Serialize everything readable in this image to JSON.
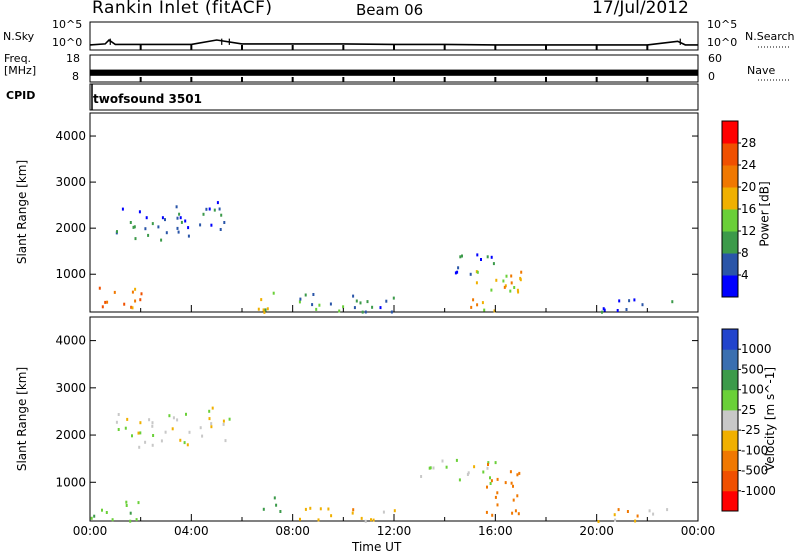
{
  "header": {
    "station": "Rankin Inlet (fitACF)",
    "beam": "Beam 06",
    "date": "17/Jul/2012"
  },
  "sky_panel": {
    "left_label": "N.Sky",
    "left_tick_top": "10^5",
    "left_tick_bottom": "10^0",
    "right_label": "N.Search",
    "right_tick_top": "10^5",
    "right_tick_bottom": "10^0"
  },
  "freq_panel": {
    "left_label_line1": "Freq.",
    "left_label_line2": "[MHz]",
    "left_tick_top": "18",
    "left_tick_bottom": "8",
    "right_label": "Nave",
    "right_tick_top": "60",
    "right_tick_bottom": "0"
  },
  "cpid_panel": {
    "label": "CPID",
    "value": "twofsound 3501"
  },
  "x_axis": {
    "label": "Time UT",
    "ticks": [
      "00:00",
      "04:00",
      "08:00",
      "12:00",
      "16:00",
      "20:00",
      "00:00"
    ]
  },
  "power_panel": {
    "ylabel": "Slant Range [km]",
    "yticks": [
      "1000",
      "2000",
      "3000",
      "4000"
    ],
    "cbar_label": "Power [dB]",
    "cbar_ticks": [
      "4",
      "8",
      "12",
      "16",
      "20",
      "24",
      "28"
    ],
    "cbar_colors": [
      "#0000ff",
      "#2a55a8",
      "#3c9a4a",
      "#6ad038",
      "#f0b000",
      "#f07800",
      "#f05000",
      "#ff0000"
    ]
  },
  "velocity_panel": {
    "ylabel": "Slant Range [km]",
    "yticks": [
      "1000",
      "2000",
      "3000",
      "4000"
    ],
    "cbar_label": "Velocity [m s^-1]",
    "cbar_ticks": [
      "1000",
      "500",
      "100",
      "25",
      "-25",
      "-100",
      "-500",
      "-1000"
    ],
    "cbar_colors": [
      "#2244cc",
      "#3a6fb0",
      "#3c9a4a",
      "#6ad038",
      "#c8c8c8",
      "#f0b000",
      "#f07800",
      "#f05000",
      "#ff0000"
    ]
  },
  "chart_data": [
    {
      "type": "line",
      "name": "N.Sky",
      "x_unit": "hours UT",
      "x_range": [
        0,
        24
      ],
      "scale": "log",
      "ylim": [
        1,
        100000
      ],
      "x": [
        0,
        0.6,
        0.75,
        1,
        2,
        4,
        5,
        6,
        8,
        10,
        12,
        14,
        16,
        18,
        20,
        22,
        23.2,
        23.5,
        24
      ],
      "values": [
        3,
        5,
        40,
        4,
        4,
        4,
        40,
        5,
        5,
        5,
        4,
        4,
        3,
        3,
        3,
        3,
        20,
        3,
        3
      ]
    },
    {
      "type": "area",
      "name": "Freq. [MHz]",
      "x_range": [
        0,
        24
      ],
      "ylim": [
        8,
        18
      ],
      "note_values_description": "dense band, approximately constant",
      "x": [
        0,
        24
      ],
      "values": [
        11,
        11
      ]
    },
    {
      "type": "heatmap",
      "title": "Power [dB]",
      "xlabel": "Time UT",
      "ylabel": "Slant Range [km]",
      "x_range_hours": [
        0,
        24
      ],
      "y_range_km": [
        180,
        4500
      ],
      "color_range": [
        0,
        30
      ],
      "colorbar_ticks": [
        4,
        8,
        12,
        16,
        20,
        24,
        28
      ],
      "regions": [
        {
          "t0": 0.0,
          "t1": 2.0,
          "r0": 200,
          "r1": 800,
          "value": 22
        },
        {
          "t0": 1.0,
          "t1": 4.0,
          "r0": 1700,
          "r1": 2500,
          "value": 6
        },
        {
          "t0": 4.3,
          "t1": 5.5,
          "r0": 1900,
          "r1": 2700,
          "value": 5
        },
        {
          "t0": 6.5,
          "t1": 7.5,
          "r0": 200,
          "r1": 800,
          "value": 14
        },
        {
          "t0": 7.0,
          "t1": 12.0,
          "r0": 200,
          "r1": 600,
          "value": 8
        },
        {
          "t0": 14.0,
          "t1": 16.0,
          "r0": 1000,
          "r1": 1500,
          "value": 6
        },
        {
          "t0": 15.0,
          "t1": 17.0,
          "r0": 200,
          "r1": 1300,
          "value": 16
        },
        {
          "t0": 20.0,
          "t1": 23.0,
          "r0": 200,
          "r1": 500,
          "value": 5
        }
      ]
    },
    {
      "type": "heatmap",
      "title": "Velocity [m s^-1]",
      "xlabel": "Time UT",
      "ylabel": "Slant Range [km]",
      "x_range_hours": [
        0,
        24
      ],
      "y_range_km": [
        180,
        4500
      ],
      "colorbar_ticks": [
        1000,
        500,
        100,
        25,
        -25,
        -100,
        -500,
        -1000
      ],
      "regions": [
        {
          "t0": 0.0,
          "t1": 2.0,
          "r0": 200,
          "r1": 700,
          "value": 80
        },
        {
          "t0": 1.0,
          "t1": 4.0,
          "r0": 1700,
          "r1": 2500,
          "value": 0
        },
        {
          "t0": 4.3,
          "t1": 5.5,
          "r0": 1900,
          "r1": 2700,
          "value": 0
        },
        {
          "t0": 6.8,
          "t1": 7.6,
          "r0": 300,
          "r1": 800,
          "value": 200
        },
        {
          "t0": 7.5,
          "t1": 12.0,
          "r0": 200,
          "r1": 500,
          "value": -60
        },
        {
          "t0": 13.0,
          "t1": 16.0,
          "r0": 1000,
          "r1": 1500,
          "value": 0
        },
        {
          "t0": 15.5,
          "t1": 17.0,
          "r0": 300,
          "r1": 1500,
          "value": -300
        },
        {
          "t0": 20.0,
          "t1": 23.0,
          "r0": 200,
          "r1": 500,
          "value": -60
        }
      ]
    }
  ]
}
